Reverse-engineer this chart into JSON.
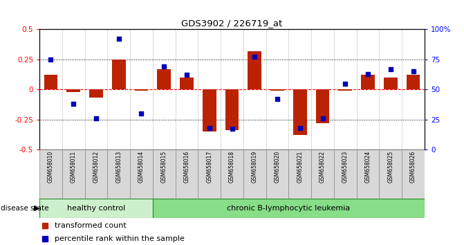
{
  "title": "GDS3902 / 226719_at",
  "samples": [
    "GSM658010",
    "GSM658011",
    "GSM658012",
    "GSM658013",
    "GSM658014",
    "GSM658015",
    "GSM658016",
    "GSM658017",
    "GSM658018",
    "GSM658019",
    "GSM658020",
    "GSM658021",
    "GSM658022",
    "GSM658023",
    "GSM658024",
    "GSM658025",
    "GSM658026"
  ],
  "red_bars": [
    0.12,
    -0.02,
    -0.07,
    0.25,
    -0.01,
    0.17,
    0.1,
    -0.35,
    -0.34,
    0.32,
    -0.01,
    -0.38,
    -0.28,
    -0.01,
    0.12,
    0.1,
    0.12
  ],
  "blue_markers_pct": [
    75,
    38,
    26,
    92,
    30,
    69,
    62,
    18,
    17,
    77,
    42,
    18,
    26,
    55,
    63,
    67,
    65
  ],
  "group_labels": [
    "healthy control",
    "chronic B-lymphocytic leukemia"
  ],
  "healthy_count": 5,
  "total_count": 17,
  "ylim": [
    -0.5,
    0.5
  ],
  "yticks": [
    -0.5,
    -0.25,
    0.0,
    0.25,
    0.5
  ],
  "ytick_labels_left": [
    "-0.5",
    "-0.25",
    "0",
    "0.25",
    "0.5"
  ],
  "ytick_labels_right": [
    "0",
    "25",
    "50",
    "75",
    "100%"
  ],
  "red_color": "#BB2200",
  "blue_color": "#0000BB",
  "bar_width": 0.6,
  "disease_state_label": "disease state",
  "legend_red": "transformed count",
  "legend_blue": "percentile rank within the sample",
  "healthy_color": "#ccf0cc",
  "leukemia_color": "#88dd88"
}
